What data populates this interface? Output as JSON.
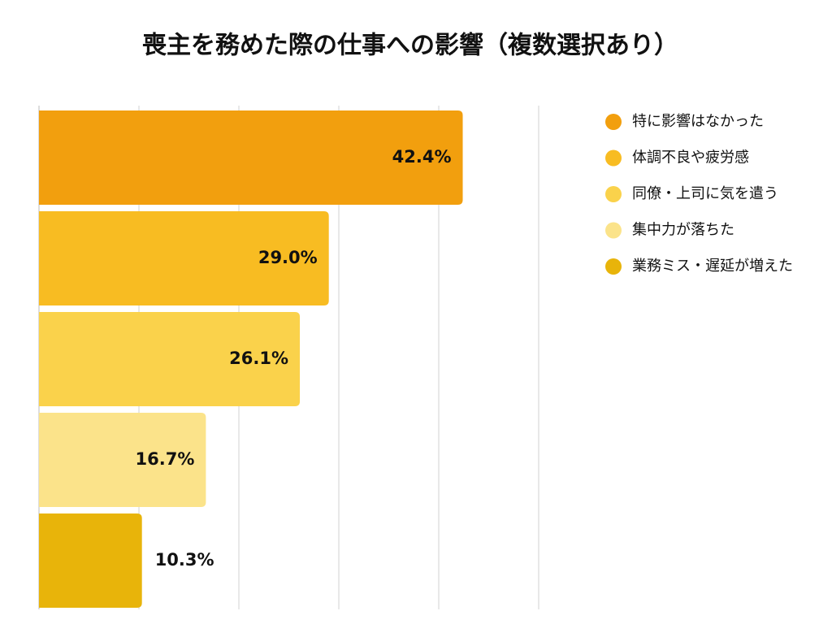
{
  "chart_data": {
    "type": "hbar",
    "title": "喪主を務めた際の仕事への影響（複数選択あり）",
    "categories": [
      "特に影響はなかった",
      "体調不良や疲労感",
      "同僚・上司に気を遣う",
      "集中力が落ちた",
      "業務ミス・遅延が増えた"
    ],
    "values": [
      42.4,
      29.0,
      26.1,
      16.7,
      10.3
    ],
    "value_labels": [
      "42.4%",
      "29.0%",
      "26.1%",
      "16.7%",
      "10.3%"
    ],
    "colors": [
      "#F29F0E",
      "#F8BC22",
      "#FAD24B",
      "#FBE38A",
      "#E8B40A"
    ],
    "xlim": [
      0,
      50
    ],
    "xticks": [
      0,
      10,
      20,
      30,
      40,
      50
    ],
    "grid": true,
    "legend": "right"
  }
}
